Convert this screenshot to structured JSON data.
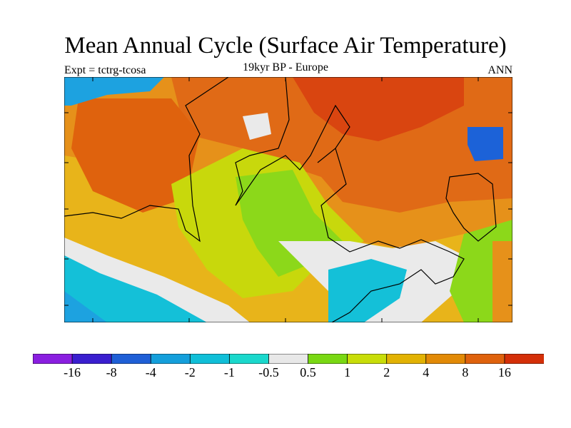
{
  "header": {
    "title": "Mean Annual Cycle (Surface Air Temperature)",
    "subtitle": "19kyr BP - Europe",
    "left_label": "Expt = tctrg-tcosa",
    "right_label": "ANN"
  },
  "colorbar": {
    "colors": [
      "#8a1ee0",
      "#3a1ecf",
      "#1f5fd6",
      "#149fdb",
      "#10bfd8",
      "#1ad8cc",
      "#e8e8e8",
      "#79d813",
      "#c8dd08",
      "#e2b203",
      "#e28a06",
      "#df620d",
      "#d42f08"
    ],
    "labels": [
      "-16",
      "-8",
      "-4",
      "-2",
      "-1",
      "-0.5",
      "0.5",
      "1",
      "2",
      "4",
      "8",
      "16"
    ]
  },
  "palette": {
    "dark_red": "#d94510",
    "orange_red": "#e06a16",
    "orange": "#e6911a",
    "yellow_orange": "#e8b41a",
    "yellow_green": "#c8d80c",
    "green": "#8cd81a",
    "white": "#eaeaea",
    "cyan": "#14c0d8",
    "light_blue": "#1da2e0",
    "blue": "#1c62d8"
  }
}
